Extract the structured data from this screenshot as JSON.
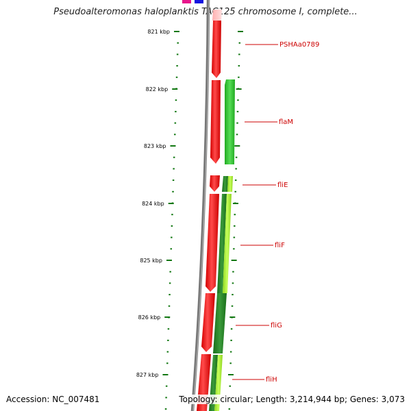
{
  "title": "Pseudoalteromonas haloplanktis TAC125 chromosome I, complete...",
  "accession": "Accession: NC_007481",
  "topology": "Topology: circular; Length: 3,214,944 bp; Genes: 3,073",
  "colors": {
    "forward_strand": "#ff1010",
    "reverse_strand_a": "#33cc33",
    "reverse_strand_b": "#9ef02b",
    "reverse_strand_c": "#228822",
    "backbone": "#808080",
    "ticks": "#117711",
    "label_line": "#cc0000",
    "top_marker_1": "#e8158c",
    "top_marker_2": "#1414e0"
  },
  "ticks": [
    {
      "label": "821 kbp"
    },
    {
      "label": "822 kbp"
    },
    {
      "label": "823 kbp"
    },
    {
      "label": "824 kbp"
    },
    {
      "label": "825 kbp"
    },
    {
      "label": "826 kbp"
    },
    {
      "label": "827 kbp"
    }
  ],
  "genes": [
    {
      "name": "PSHAa0789"
    },
    {
      "name": "flaM"
    },
    {
      "name": "fliE"
    },
    {
      "name": "fliF"
    },
    {
      "name": "fliG"
    },
    {
      "name": "fliH"
    }
  ]
}
